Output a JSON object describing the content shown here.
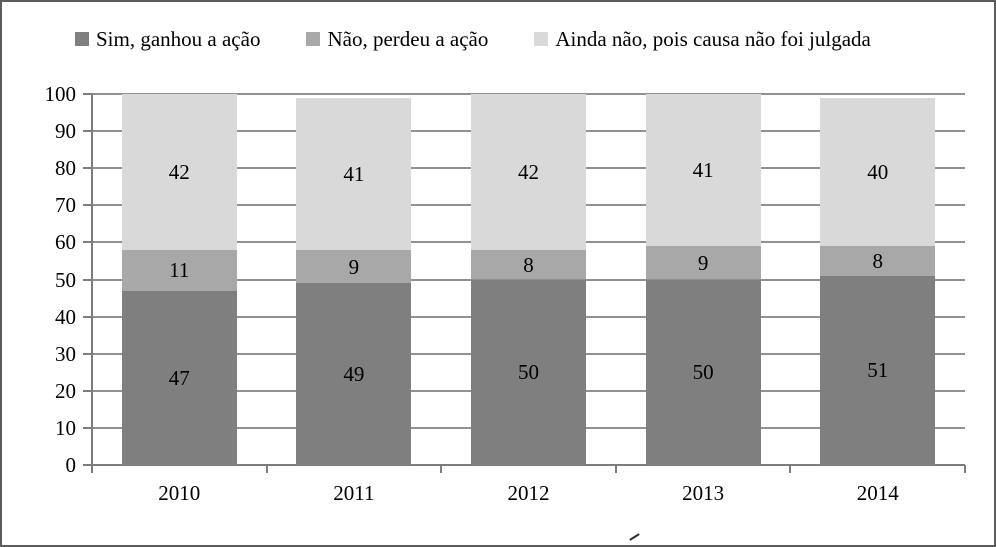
{
  "chart_data": {
    "type": "bar",
    "stacked": true,
    "title": "",
    "xlabel": "",
    "ylabel": "",
    "categories": [
      "2010",
      "2011",
      "2012",
      "2013",
      "2014"
    ],
    "series": [
      {
        "name": "Sim, ganhou a ação",
        "color": "#7f7f7f",
        "values": [
          47,
          49,
          50,
          50,
          51
        ]
      },
      {
        "name": "Não, perdeu a ação",
        "color": "#a8a8a8",
        "values": [
          11,
          9,
          8,
          9,
          8
        ]
      },
      {
        "name": "Ainda não, pois causa não foi julgada",
        "color": "#d9d9d9",
        "values": [
          42,
          41,
          42,
          41,
          40
        ]
      }
    ],
    "ylim": [
      0,
      100
    ],
    "ytick_step": 10,
    "yticks": [
      0,
      10,
      20,
      30,
      40,
      50,
      60,
      70,
      80,
      90,
      100
    ],
    "grid": true,
    "data_labels": true,
    "legend_position": "top"
  },
  "colors": {
    "gridline": "#919191",
    "axis": "#7d7d7d",
    "label_text": "#000000",
    "frame_border": "#5c5c5c",
    "background": "#ffffff"
  }
}
